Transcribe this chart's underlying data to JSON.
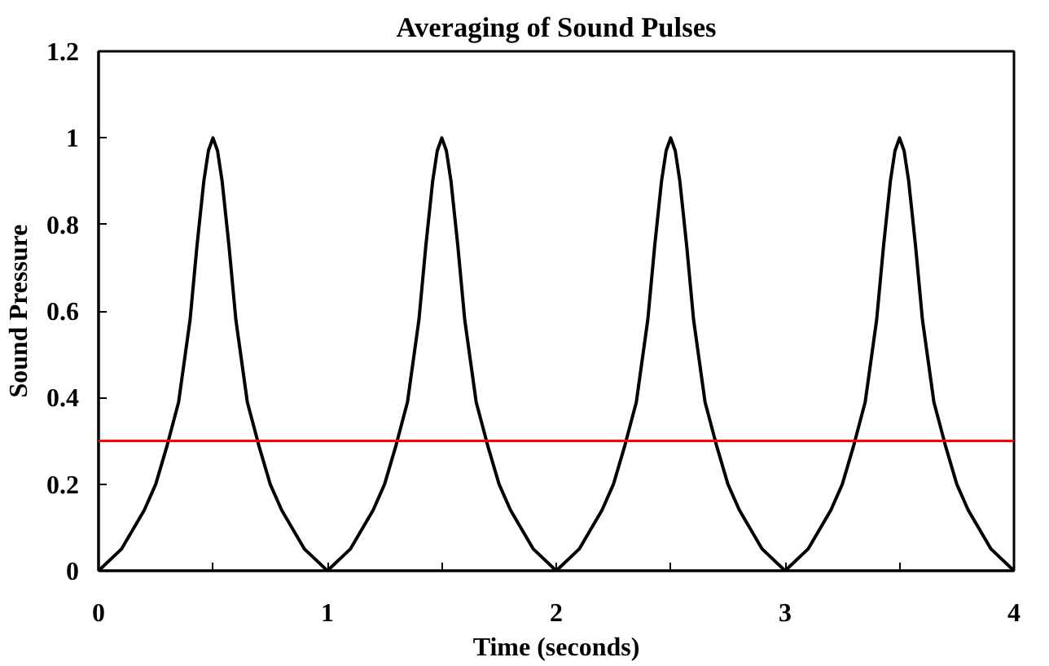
{
  "chart_data": {
    "type": "line",
    "title": "Averaging of Sound Pulses",
    "xlabel": "Time (seconds)",
    "ylabel": "Sound Pressure",
    "x": [
      0,
      0.1,
      0.2,
      0.25,
      0.3,
      0.35,
      0.4,
      0.43,
      0.46,
      0.48,
      0.5,
      0.52,
      0.54,
      0.57,
      0.6,
      0.65,
      0.7,
      0.75,
      0.8,
      0.9,
      1,
      1.1,
      1.2,
      1.25,
      1.3,
      1.35,
      1.4,
      1.43,
      1.46,
      1.48,
      1.5,
      1.52,
      1.54,
      1.57,
      1.6,
      1.65,
      1.7,
      1.75,
      1.8,
      1.9,
      2,
      2.1,
      2.2,
      2.25,
      2.3,
      2.35,
      2.4,
      2.43,
      2.46,
      2.48,
      2.5,
      2.52,
      2.54,
      2.57,
      2.6,
      2.65,
      2.7,
      2.75,
      2.8,
      2.9,
      3,
      3.1,
      3.2,
      3.25,
      3.3,
      3.35,
      3.4,
      3.43,
      3.46,
      3.48,
      3.5,
      3.52,
      3.54,
      3.57,
      3.6,
      3.65,
      3.7,
      3.75,
      3.8,
      3.9,
      4
    ],
    "series": [
      {
        "color": "#000000",
        "values": [
          0,
          0.05,
          0.14,
          0.2,
          0.29,
          0.39,
          0.58,
          0.75,
          0.9,
          0.97,
          1,
          0.97,
          0.9,
          0.75,
          0.58,
          0.39,
          0.29,
          0.2,
          0.14,
          0.05,
          0,
          0.05,
          0.14,
          0.2,
          0.29,
          0.39,
          0.58,
          0.75,
          0.9,
          0.97,
          1,
          0.97,
          0.9,
          0.75,
          0.58,
          0.39,
          0.29,
          0.2,
          0.14,
          0.05,
          0,
          0.05,
          0.14,
          0.2,
          0.29,
          0.39,
          0.58,
          0.75,
          0.9,
          0.97,
          1,
          0.97,
          0.9,
          0.75,
          0.58,
          0.39,
          0.29,
          0.2,
          0.14,
          0.05,
          0,
          0.05,
          0.14,
          0.2,
          0.29,
          0.39,
          0.58,
          0.75,
          0.9,
          0.97,
          1,
          0.97,
          0.9,
          0.75,
          0.58,
          0.39,
          0.29,
          0.2,
          0.14,
          0.05,
          0
        ]
      }
    ],
    "xlim": [
      0,
      4
    ],
    "ylim": [
      0,
      1.2
    ],
    "xticks": [
      0,
      {
        "value": 0.5,
        "label": null
      },
      1,
      {
        "value": 1.5,
        "label": null
      },
      2,
      {
        "value": 2.5,
        "label": null
      },
      3,
      {
        "value": 3.5,
        "label": null
      },
      4
    ],
    "yticks": [
      0,
      0.2,
      0.4,
      0.6,
      0.8,
      1,
      1.2
    ],
    "ref_lines": [
      {
        "axis": "y",
        "value": 0.3,
        "color": "#ff0000"
      }
    ],
    "grid": false,
    "marker": "none",
    "line_style": "solid"
  }
}
